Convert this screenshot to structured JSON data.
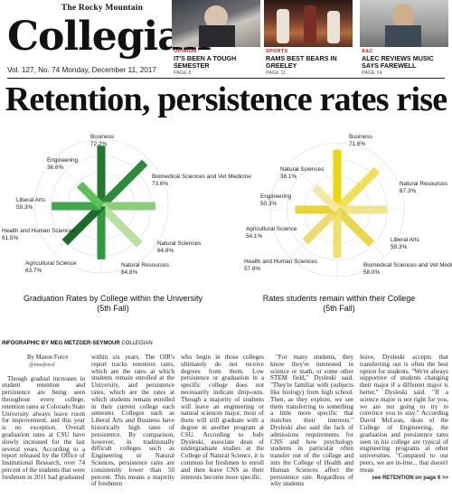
{
  "masthead": {
    "kicker": "The Rocky Mountain",
    "logo": "Collegian",
    "issue_line": "Vol. 127, No. 74  Monday, December 11, 2017"
  },
  "teasers": [
    {
      "section": "OPINION",
      "headline": "IT'S BEEN A TOUGH SEMESTER",
      "page": "PAGE 8"
    },
    {
      "section": "SPORTS",
      "headline": "RAMS BEST BEARS IN GREELEY",
      "page": "PAGE 11"
    },
    {
      "section": "A&C",
      "headline": "ALEC REVIEWS MUSIC SAYS FAREWELL",
      "page": "PAGE 14"
    }
  ],
  "headline": "Retention, persistence rates rise",
  "chart_data": [
    {
      "type": "radial-bar",
      "title": "Graduation Rates by College within the University",
      "subtitle": "(5th Fall)",
      "categories": [
        "Business",
        "Biomedical Sciences and Vet Medicine",
        "Natural Sciences",
        "Natural Resources",
        "Agricultural Science",
        "Health and Human Sciences",
        "Liberal Arts",
        "Engineering"
      ],
      "values": [
        72.2,
        73.6,
        64.8,
        64.8,
        63.7,
        61.5,
        59.3,
        36.6
      ],
      "value_labels": [
        "72.2%",
        "73.6%",
        "64.8%",
        "64.8%",
        "63.7%",
        "61.5%",
        "59.3%",
        "36.6%"
      ],
      "colors": [
        "#1f7a2e",
        "#2e8b3a",
        "#8ccf7a",
        "#b7e0a2",
        "#2f9a3e",
        "#1a6e2a",
        "#3fa84a",
        "#5cbf5a"
      ]
    },
    {
      "type": "radial-bar",
      "title": "Rates students remain within their College",
      "subtitle": "(5th Fall)",
      "categories": [
        "Business",
        "Natural Resources",
        "Liberal Arts",
        "Biomedical Sciences and Vet Medicine",
        "Health and Human Sciences",
        "Agricultural Science",
        "Engineering",
        "Natural Sciences"
      ],
      "values": [
        71.6,
        67.3,
        59.3,
        58.0,
        57.6,
        54.1,
        50.3,
        38.1
      ],
      "value_labels": [
        "71.6%",
        "67.3%",
        "59.3%",
        "58.0%",
        "57.6%",
        "54.1%",
        "50.3%",
        "38.1%"
      ],
      "colors": [
        "#ecd70a",
        "#f3e05a",
        "#f1e38a",
        "#e9d64a",
        "#f0df6a",
        "#eedc72",
        "#e8d43a",
        "#f5e9a6"
      ]
    }
  ],
  "credit": {
    "label": "INFOGRAPHIC BY",
    "name": "MEG METZGER-SEYMOUR",
    "outlet": "COLLEGIAN"
  },
  "article": {
    "byline": "By Mason Force",
    "handle": "@masforcd",
    "col1": "Though gradual increases in student retention and persistence are being seen throughout every college, retention rates at Colorado State University always leave room for improvement, and this year is no exception. Overall graduation rates at CSU have slowly increased for the last several years. According to a report released by the Office of Institutional Research, over 74 percent of the students that were freshmen in 2011 had graduated",
    "col2": "within six years. The OIR's report tracks retention rates, which are the rates at which students remain enrolled at the University, and persistence rates, which are the rates at which students remain enrolled in their current college each semester. Colleges such as Liberal Arts and Business have historically high rates of persistence. By comparison, however, in traditionally difficult colleges such as Engineering or Natural Sciences, persistence rates are consistently lower than 50 percent. This means a majority of freshmen",
    "col3": "who begin in those colleges ultimately do not receive degrees from them. Low persistence or graduation in a specific college does not necessarily indicate drop-outs. Though a majority of students will leave an engineering or natural sciences major, most of them will still graduate with a degree in another program at CSU. According to Jody Dysleski, associate dean of undergraduate studies at the College of Natural Science, it is common for freshmen to enroll and then leave CNS as their interests become more specific.",
    "col4": "\"For many students, they know they're interested in science or math, or some other STEM field,\" Dysleski said. \"They're familiar with (subjects like biology) from high school. Then, as they explore, we see them transferring to something a little more specific that matches their interests.\" Dysleski also said the lack of admissions requirements for CNS and how psychology students in particular often transfer out of the college and into the College of Health and Human Sciences affect the persistence rate. Regardless of why students",
    "col5": "leave, Dysleski accepts that transferring out is often the best option for students. \"We're always supportive of students changing their major if a different major is better,\" Dysleski said. \"If a science major is not right for you, we are not going to try to convince you to stay.\" According David McLean, dean of the College of Engineering, the graduation and persistence rates seen in his college are typical of engineering programs at other universities. \"Compared to our peers, we are in-line... that doesn't mean",
    "jump": "see RETENTION on page 6 >>"
  }
}
